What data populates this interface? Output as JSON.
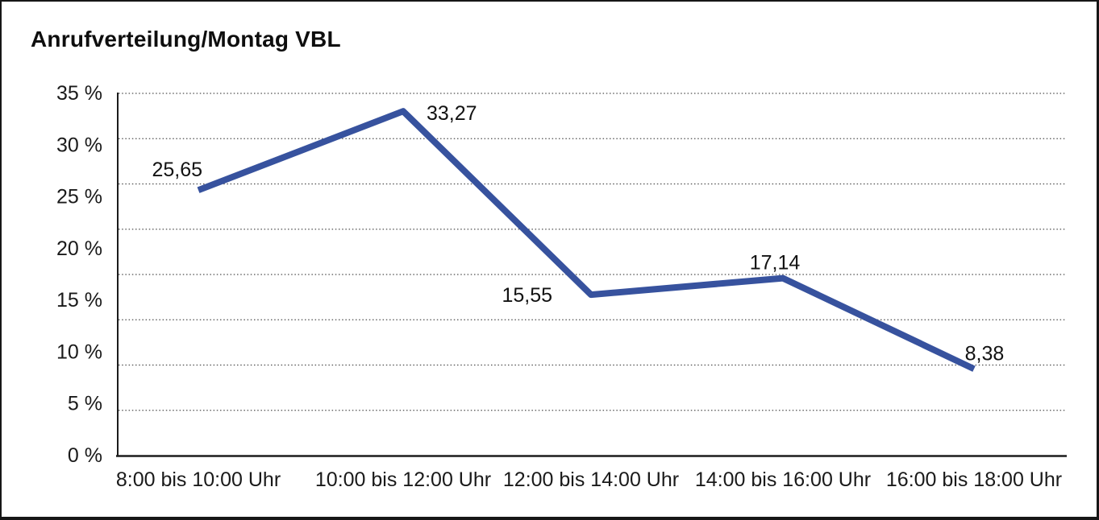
{
  "chart_data": {
    "type": "line",
    "title": "Anrufverteilung/Montag VBL",
    "categories": [
      "8:00 bis 10:00 Uhr",
      "10:00 bis 12:00 Uhr",
      "12:00 bis 14:00 Uhr",
      "14:00 bis 16:00 Uhr",
      "16:00 bis 18:00 Uhr"
    ],
    "values": [
      25.65,
      33.27,
      15.55,
      17.14,
      8.38
    ],
    "value_labels": [
      "25,65",
      "33,27",
      "15,55",
      "17,14",
      "8,38"
    ],
    "yticks": [
      "35 %",
      "30 %",
      "25 %",
      "20 %",
      "15 %",
      "10 %",
      "5 %",
      "0 %"
    ],
    "ylim": [
      0,
      35
    ],
    "xlabel": "",
    "ylabel": "",
    "legend": "none",
    "grid": "horizontal dotted, 8 equal divisions",
    "line_color": "#37529E",
    "axis_color": "#1c1c1c",
    "gridline_color": "#4d4d4d",
    "text_color": "#1a1a1a"
  }
}
